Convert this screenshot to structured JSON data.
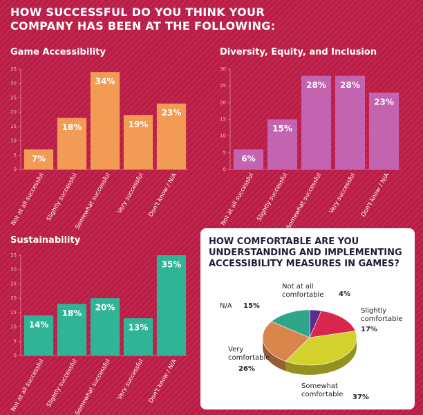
{
  "title": "HOW SUCCESSFUL DO YOU THINK YOUR COMPANY HAS BEEN AT THE FOLLOWING:",
  "chart_data": [
    {
      "type": "bar",
      "title": "Game Accessibility",
      "categories": [
        "Not at all successful",
        "Slightly successful",
        "Somewhat successful",
        "Very successful",
        "Don't know / N/A"
      ],
      "values": [
        7,
        18,
        34,
        19,
        23
      ],
      "value_labels": [
        "7%",
        "18%",
        "34%",
        "19%",
        "23%"
      ],
      "color": "#f29b55",
      "ylim": [
        0,
        35
      ],
      "yticks": [
        0,
        5,
        10,
        15,
        20,
        25,
        30,
        35
      ]
    },
    {
      "type": "bar",
      "title": "Diversity, Equity, and Inclusion",
      "categories": [
        "Not at all successful",
        "Slightly successful",
        "Somewhat successful",
        "Very successful",
        "Don't know / N/A"
      ],
      "values": [
        6,
        15,
        28,
        28,
        23
      ],
      "value_labels": [
        "6%",
        "15%",
        "28%",
        "28%",
        "23%"
      ],
      "color": "#c463b0",
      "ylim": [
        0,
        30
      ],
      "yticks": [
        0,
        5,
        10,
        15,
        20,
        25,
        30
      ]
    },
    {
      "type": "bar",
      "title": "Sustainability",
      "categories": [
        "Not at all successful",
        "Slightly successful",
        "Somewhat successful",
        "Very successful",
        "Don't know / N/A"
      ],
      "values": [
        14,
        18,
        20,
        13,
        35
      ],
      "value_labels": [
        "14%",
        "18%",
        "20%",
        "13%",
        "35%"
      ],
      "color": "#2fb596",
      "ylim": [
        0,
        35
      ],
      "yticks": [
        0,
        5,
        10,
        15,
        20,
        25,
        30,
        35
      ]
    },
    {
      "type": "pie",
      "title": "HOW COMFORTABLE ARE YOU UNDERSTANDING AND IMPLEMENTING ACCESSIBILITY MEASURES IN GAMES?",
      "categories": [
        "Not at all comfortable",
        "Slightly comfortable",
        "Somewhat comfortable",
        "Very comfortable",
        "N/A"
      ],
      "values": [
        4,
        17,
        37,
        26,
        15
      ],
      "value_labels": [
        "4%",
        "17%",
        "37%",
        "26%",
        "15%"
      ],
      "colors": [
        "#5b2d8e",
        "#d8274c",
        "#d3d12c",
        "#d9854b",
        "#2fa58a"
      ]
    }
  ]
}
